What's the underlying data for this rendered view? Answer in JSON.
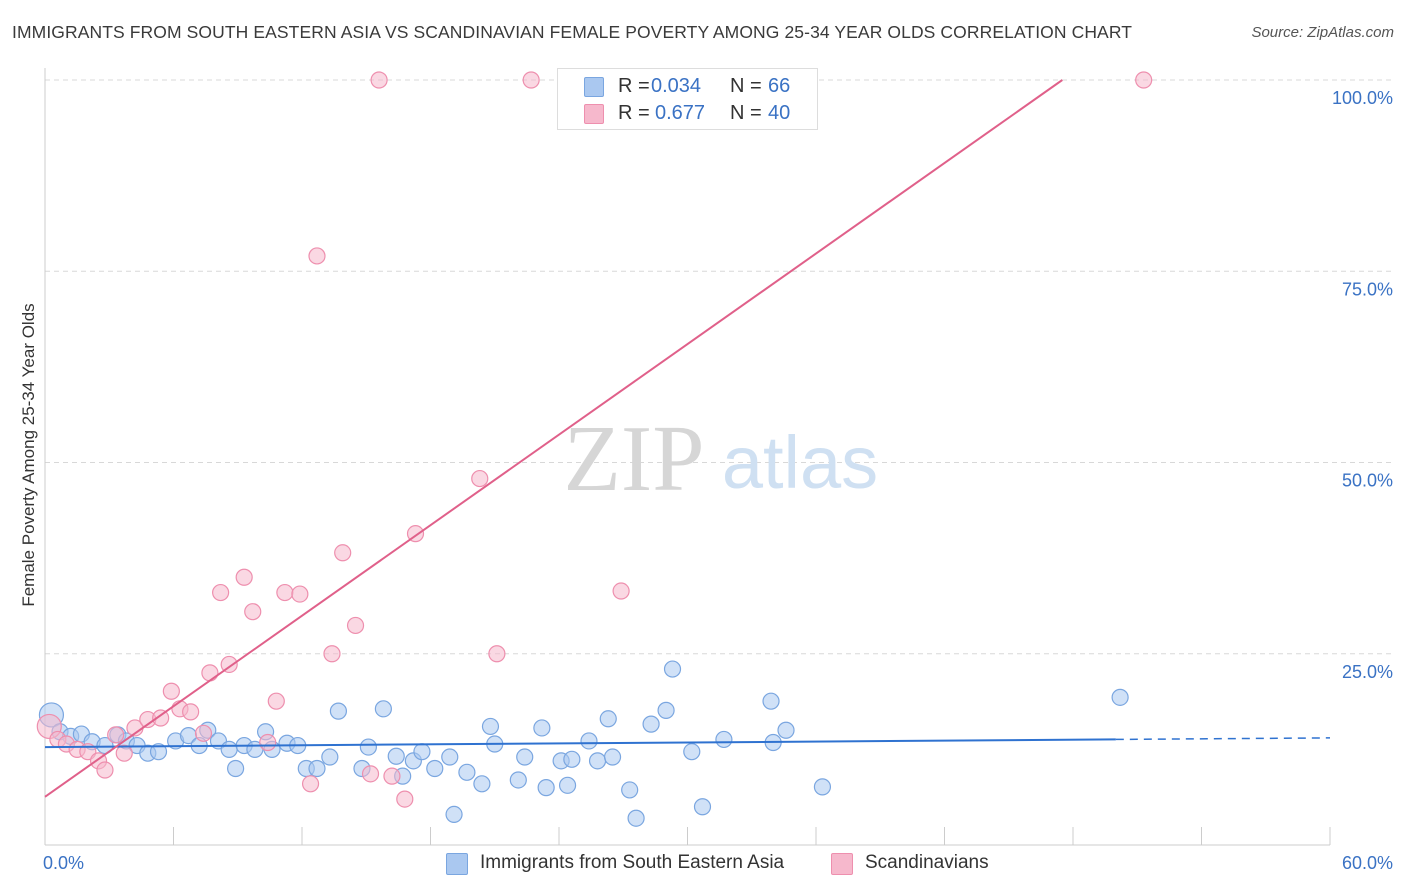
{
  "title": "IMMIGRANTS FROM SOUTH EASTERN ASIA VS SCANDINAVIAN FEMALE POVERTY AMONG 25-34 YEAR OLDS CORRELATION CHART",
  "source": "Source: ZipAtlas.com",
  "watermark": {
    "zip": "ZIP",
    "atlas": "atlas"
  },
  "legend": {
    "r_label": "R =",
    "n_label": "N =",
    "series_a": {
      "r": "0.034",
      "n": "66"
    },
    "series_b": {
      "r": "0.677",
      "n": "40"
    }
  },
  "colors": {
    "blue_fill": "#aac8f0",
    "blue_stroke": "#7aa6e0",
    "blue_line": "#2f72d0",
    "pink_fill": "#f6b8cc",
    "pink_stroke": "#ee8fae",
    "pink_line": "#e0608a",
    "axis_text": "#3a72c4",
    "grid": "#d8d8d8"
  },
  "chart_data": {
    "type": "scatter",
    "xlabel": "",
    "ylabel": "Female Poverty Among 25-34 Year Olds",
    "xlim": [
      0,
      60
    ],
    "ylim": [
      0,
      100
    ],
    "x_tick_labels": [
      "0.0%",
      "60.0%"
    ],
    "y_ticks": [
      25,
      50,
      75,
      100
    ],
    "y_tick_labels": [
      "25.0%",
      "50.0%",
      "75.0%",
      "100.0%"
    ],
    "series": [
      {
        "name": "Immigrants from South Eastern Asia",
        "color": "#aac8f0",
        "trend": {
          "x0": 0,
          "y0": 12.8,
          "x1": 50,
          "y1": 13.8,
          "dash_to": 60,
          "dash_y": 14.0
        },
        "points": [
          [
            0.3,
            17.0
          ],
          [
            0.7,
            14.8
          ],
          [
            1.2,
            14.2
          ],
          [
            1.7,
            14.5
          ],
          [
            2.2,
            13.5
          ],
          [
            2.8,
            13.0
          ],
          [
            3.4,
            14.4
          ],
          [
            3.8,
            13.6
          ],
          [
            4.3,
            13.0
          ],
          [
            4.8,
            12.0
          ],
          [
            5.3,
            12.2
          ],
          [
            6.1,
            13.6
          ],
          [
            6.7,
            14.3
          ],
          [
            7.2,
            13.0
          ],
          [
            7.6,
            15.0
          ],
          [
            8.1,
            13.6
          ],
          [
            8.6,
            12.5
          ],
          [
            8.9,
            10.0
          ],
          [
            9.3,
            13.0
          ],
          [
            9.8,
            12.5
          ],
          [
            10.3,
            14.8
          ],
          [
            10.6,
            12.5
          ],
          [
            11.3,
            13.3
          ],
          [
            11.8,
            13.0
          ],
          [
            12.2,
            10.0
          ],
          [
            12.7,
            10.0
          ],
          [
            13.3,
            11.5
          ],
          [
            13.7,
            17.5
          ],
          [
            14.8,
            10.0
          ],
          [
            15.1,
            12.8
          ],
          [
            15.8,
            17.8
          ],
          [
            16.4,
            11.6
          ],
          [
            16.7,
            9.0
          ],
          [
            17.2,
            11.0
          ],
          [
            17.6,
            12.2
          ],
          [
            18.2,
            10.0
          ],
          [
            18.9,
            11.5
          ],
          [
            19.1,
            4.0
          ],
          [
            19.7,
            9.5
          ],
          [
            20.4,
            8.0
          ],
          [
            20.8,
            15.5
          ],
          [
            21.0,
            13.2
          ],
          [
            22.1,
            8.5
          ],
          [
            22.4,
            11.5
          ],
          [
            23.2,
            15.3
          ],
          [
            23.4,
            7.5
          ],
          [
            24.1,
            11.0
          ],
          [
            24.4,
            7.8
          ],
          [
            24.6,
            11.2
          ],
          [
            25.4,
            13.6
          ],
          [
            25.8,
            11.0
          ],
          [
            26.3,
            16.5
          ],
          [
            26.5,
            11.5
          ],
          [
            27.3,
            7.2
          ],
          [
            27.6,
            3.5
          ],
          [
            28.3,
            15.8
          ],
          [
            29.0,
            17.6
          ],
          [
            29.3,
            23.0
          ],
          [
            30.2,
            12.2
          ],
          [
            30.7,
            5.0
          ],
          [
            31.7,
            13.8
          ],
          [
            33.9,
            18.8
          ],
          [
            34.0,
            13.4
          ],
          [
            34.6,
            15.0
          ],
          [
            36.3,
            7.6
          ],
          [
            50.2,
            19.3
          ]
        ]
      },
      {
        "name": "Scandinavians",
        "color": "#f6b8cc",
        "trend": {
          "x0": 0,
          "y0": 6.3,
          "x1": 47.5,
          "y1": 100.0
        },
        "points": [
          [
            0.2,
            15.5
          ],
          [
            0.6,
            13.8
          ],
          [
            1.0,
            13.2
          ],
          [
            1.5,
            12.5
          ],
          [
            2.0,
            12.2
          ],
          [
            2.5,
            11.0
          ],
          [
            2.8,
            9.8
          ],
          [
            3.3,
            14.4
          ],
          [
            3.7,
            12.0
          ],
          [
            4.2,
            15.3
          ],
          [
            4.8,
            16.4
          ],
          [
            5.4,
            16.6
          ],
          [
            5.9,
            20.1
          ],
          [
            6.3,
            17.8
          ],
          [
            6.8,
            17.4
          ],
          [
            7.4,
            14.6
          ],
          [
            7.7,
            22.5
          ],
          [
            8.2,
            33.0
          ],
          [
            8.6,
            23.6
          ],
          [
            9.3,
            35.0
          ],
          [
            9.7,
            30.5
          ],
          [
            10.4,
            13.4
          ],
          [
            10.8,
            18.8
          ],
          [
            11.2,
            33.0
          ],
          [
            11.9,
            32.8
          ],
          [
            12.4,
            8.0
          ],
          [
            12.7,
            77.0
          ],
          [
            13.4,
            25.0
          ],
          [
            13.9,
            38.2
          ],
          [
            14.5,
            28.7
          ],
          [
            15.2,
            9.3
          ],
          [
            15.6,
            100.0
          ],
          [
            16.2,
            9.0
          ],
          [
            16.8,
            6.0
          ],
          [
            17.3,
            40.7
          ],
          [
            20.3,
            47.9
          ],
          [
            21.1,
            25.0
          ],
          [
            22.7,
            100.0
          ],
          [
            26.9,
            33.2
          ],
          [
            51.3,
            100.0
          ]
        ]
      }
    ]
  }
}
